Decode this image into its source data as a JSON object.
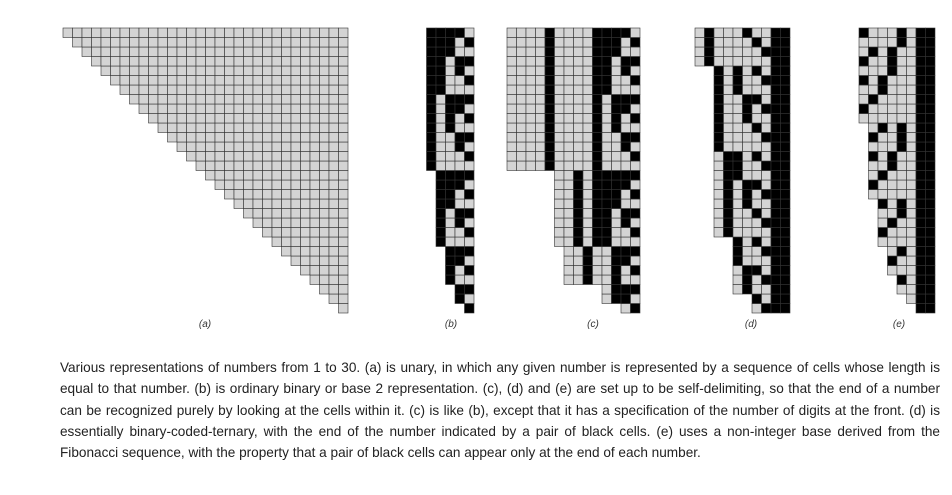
{
  "colors": {
    "light": "#d4d4d4",
    "dark": "#000000",
    "grid": "#333333"
  },
  "panels": [
    {
      "id": "a",
      "label": "(a)",
      "rows": [
        "1",
        "11",
        "111",
        "1111",
        "11111",
        "111111",
        "1111111",
        "11111111",
        "111111111",
        "1111111111",
        "11111111111",
        "111111111111",
        "1111111111111",
        "11111111111111",
        "111111111111111",
        "1111111111111111",
        "11111111111111111",
        "111111111111111111",
        "1111111111111111111",
        "11111111111111111111",
        "111111111111111111111",
        "1111111111111111111111",
        "11111111111111111111111",
        "111111111111111111111111",
        "1111111111111111111111111",
        "11111111111111111111111111",
        "111111111111111111111111111",
        "1111111111111111111111111111",
        "11111111111111111111111111111",
        "111111111111111111111111111111"
      ]
    },
    {
      "id": "b",
      "label": "(b)",
      "rows": [
        "1",
        "10",
        "11",
        "100",
        "101",
        "110",
        "111",
        "1000",
        "1001",
        "1010",
        "1011",
        "1100",
        "1101",
        "1110",
        "1111",
        "10000",
        "10001",
        "10010",
        "10011",
        "10100",
        "10101",
        "10110",
        "10111",
        "11000",
        "11001",
        "11010",
        "11011",
        "11100",
        "11101",
        "11110"
      ]
    },
    {
      "id": "c",
      "label": "(c)",
      "rows": [
        "01",
        "0110",
        "0111",
        "00100100",
        "00100101",
        "00100110",
        "00100111",
        "001011000",
        "001011001",
        "001011010",
        "001011011",
        "001011100",
        "001011101",
        "001011110",
        "001011111",
        "00001000010000",
        "00001000010001",
        "00001000010010",
        "00001000010011",
        "00001000010100",
        "00001000010101",
        "00001000010110",
        "00001000010111",
        "00001000011000",
        "00001000011001",
        "00001000011010",
        "00001000011011",
        "00001000011100",
        "00001000011101",
        "00001000011110"
      ]
    },
    {
      "id": "d",
      "label": "(d)",
      "rows": [
        "0111",
        "1011",
        "010011",
        "010111",
        "011011",
        "100011",
        "100111",
        "101011",
        "01000011",
        "01000111",
        "01001011",
        "01010011",
        "01010111",
        "01011011",
        "01100011",
        "01100111",
        "01101011",
        "10000011",
        "10000111",
        "10001011",
        "10010011",
        "10010111",
        "10011011",
        "10100011",
        "10100111",
        "10101011",
        "0100000011",
        "0100000111",
        "0100001011",
        "0100010011"
      ]
    },
    {
      "id": "e",
      "label": "(e)",
      "rows": [
        "11",
        "011",
        "0011",
        "1011",
        "00011",
        "10011",
        "01011",
        "000011",
        "100011",
        "010011",
        "001011",
        "101011",
        "0000011",
        "1000011",
        "0100011",
        "0010011",
        "1010011",
        "0001011",
        "1001011",
        "0101011",
        "00000011",
        "10000011",
        "01000011",
        "00100011",
        "10100011",
        "00010011",
        "10010011",
        "01010011",
        "00001011",
        "10001011"
      ]
    }
  ],
  "caption": "Various representations of numbers from 1 to 30. (a) is unary, in which any given number is represented by a sequence of cells whose length is equal to that number. (b) is ordinary binary or base 2 representation. (c), (d) and (e) are set up to be self-delimiting, so that the end of a number can be recognized purely by looking at the cells within it. (c) is like (b), except that it has a specification of the number of digits at the front. (d) is essentially binary-coded-ternary, with the end of the number indicated by a pair of black cells. (e) uses a non-integer base derived from the Fibonacci sequence, with the property that a pair of black cells can appear only at the end of each number."
}
